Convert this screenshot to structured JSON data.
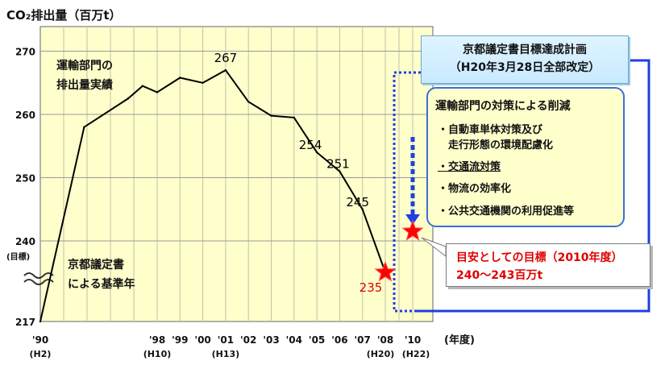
{
  "chart_data": {
    "type": "line",
    "title": "CO₂排出量（百万t）",
    "series_label": [
      "運輸部門の",
      "排出量実績"
    ],
    "x_tick_labels": [
      "'90",
      "'98",
      "'99",
      "'00",
      "'01",
      "'02",
      "'03",
      "'04",
      "'05",
      "'06",
      "'07",
      "'08",
      "'10"
    ],
    "x_era_labels": [
      "(H2)",
      "(H10)",
      "(H13)",
      "(H20)",
      "(H22)"
    ],
    "x_unit": "(年度)",
    "y_tick_labels": [
      "270",
      "260",
      "250",
      "240",
      "217"
    ],
    "y_target_marker": "(目標)",
    "baseline_label": [
      "京都議定書",
      "による基準年"
    ],
    "series": [
      {
        "x": [
          1990,
          1993,
          1996,
          1997,
          1998,
          1999,
          2000,
          2001,
          2002,
          2003,
          2004,
          2005,
          2006,
          2007,
          2008
        ],
        "y": [
          217,
          258,
          262.5,
          264.5,
          263.5,
          265.8,
          265,
          267,
          262,
          259.8,
          259.5,
          254,
          251,
          245,
          235
        ]
      }
    ],
    "data_labels": [
      {
        "x": 2001,
        "y": 267,
        "text": "267",
        "color": "#000000"
      },
      {
        "x": 2005,
        "y": 254,
        "text": "254",
        "color": "#000000"
      },
      {
        "x": 2006,
        "y": 251,
        "text": "251",
        "color": "#000000"
      },
      {
        "x": 2007,
        "y": 245,
        "text": "245",
        "color": "#000000"
      },
      {
        "x": 2008,
        "y": 235,
        "text": "235",
        "color": "#e00000"
      }
    ],
    "stars": [
      {
        "x": 2008,
        "y": 235,
        "color": "#ff0000"
      },
      {
        "x": 2010,
        "y": 241.5,
        "color": "#ff0000"
      }
    ],
    "colors": {
      "plot_bg": "#ffffcc",
      "grid": "#c2c2a8",
      "line": "#000000",
      "accent_blue": "#1f3fe0",
      "target_red": "#e00000"
    }
  },
  "plan": {
    "title_line1": "京都議定書目標達成計画",
    "title_line2": "（H20年3月28日全部改定）"
  },
  "measures": {
    "heading": "運輸部門の対策による削減",
    "items": [
      "・自動車単体対策及び",
      "　走行形態の環境配慮化",
      "・交通流対策",
      "・物流の効率化",
      "・公共交通機関の利用促進等"
    ]
  },
  "target": {
    "line1": "目安としての目標（2010年度）",
    "line2": "240〜243百万t"
  }
}
